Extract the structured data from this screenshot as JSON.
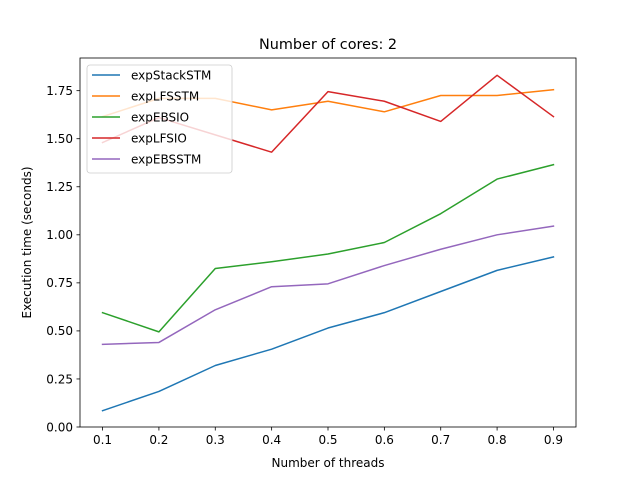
{
  "chart_data": {
    "type": "line",
    "title": "Number of cores: 2",
    "xlabel": "Number of threads",
    "ylabel": "Execution time (seconds)",
    "x": [
      0.1,
      0.2,
      0.3,
      0.4,
      0.5,
      0.6,
      0.7,
      0.8,
      0.9
    ],
    "xticks": [
      "0.1",
      "0.2",
      "0.3",
      "0.4",
      "0.5",
      "0.6",
      "0.7",
      "0.8",
      "0.9"
    ],
    "yticks": [
      "0.00",
      "0.25",
      "0.50",
      "0.75",
      "1.00",
      "1.25",
      "1.50",
      "1.75"
    ],
    "xlim": [
      0.06,
      0.94
    ],
    "ylim": [
      0.0,
      1.92
    ],
    "grid": false,
    "legend_position": "top-left",
    "series": [
      {
        "name": "expStackSTM",
        "color": "#1f77b4",
        "values": [
          0.085,
          0.185,
          0.32,
          0.405,
          0.515,
          0.595,
          0.705,
          0.815,
          0.885
        ]
      },
      {
        "name": "expLFSSTM",
        "color": "#ff7f0e",
        "values": [
          1.615,
          1.71,
          1.71,
          1.65,
          1.695,
          1.64,
          1.725,
          1.725,
          1.755
        ]
      },
      {
        "name": "expEBSIO",
        "color": "#2ca02c",
        "values": [
          0.595,
          0.495,
          0.825,
          0.86,
          0.9,
          0.96,
          1.11,
          1.29,
          1.365
        ]
      },
      {
        "name": "expLFSIO",
        "color": "#d62728",
        "values": [
          1.48,
          1.61,
          1.52,
          1.43,
          1.745,
          1.695,
          1.59,
          1.83,
          1.615
        ]
      },
      {
        "name": "expEBSSTM",
        "color": "#9467bd",
        "values": [
          0.43,
          0.44,
          0.61,
          0.73,
          0.745,
          0.84,
          0.925,
          1.0,
          1.045
        ]
      }
    ]
  }
}
